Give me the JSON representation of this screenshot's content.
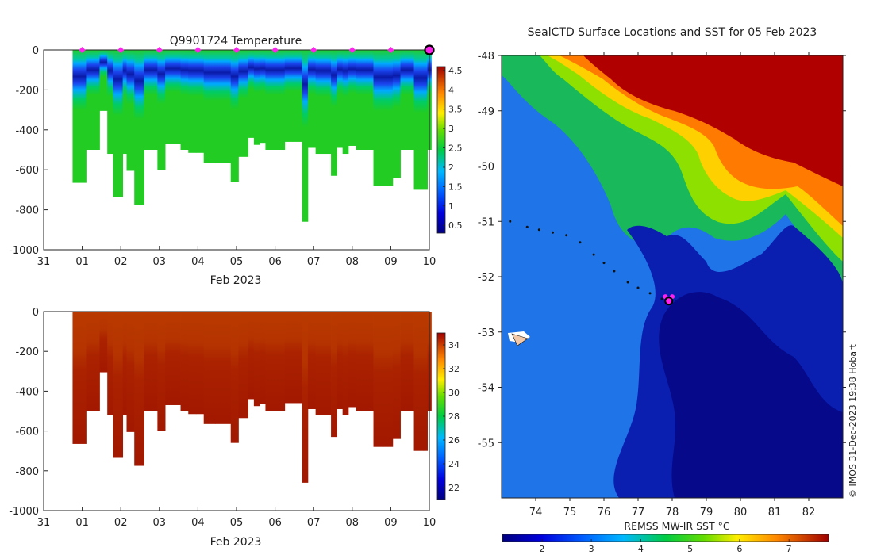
{
  "colors": {
    "axis": "#222222",
    "marker": "#ff22ee",
    "track": "#111111",
    "last_outline": "#000000",
    "sal_dark": "#a81e00",
    "sal_mid": "#b93a00"
  },
  "chart_data": [
    {
      "id": "temperature_section",
      "type": "heatmap",
      "title": "Q9901724  Temperature",
      "xlabel": "Feb 2023",
      "ylabel": "",
      "xticks": [
        "31",
        "01",
        "02",
        "03",
        "04",
        "05",
        "06",
        "07",
        "08",
        "09",
        "10"
      ],
      "xlim": [
        0,
        10
      ],
      "ylim": [
        -1000,
        0
      ],
      "yticks": [
        0,
        -200,
        -400,
        -600,
        -800,
        -1000
      ],
      "colorbar": {
        "min": 0.3,
        "max": 4.6,
        "ticks": [
          4.5,
          4,
          3.5,
          3,
          2.5,
          2,
          1.5,
          1,
          0.5
        ]
      },
      "surface_markers_day": [
        1,
        2,
        3,
        4,
        5,
        6,
        7,
        8,
        9
      ],
      "last_position_day": 10,
      "profiles": [
        {
          "day": 0.75,
          "max_depth": 665
        },
        {
          "day": 0.9,
          "max_depth": 665
        },
        {
          "day": 1.1,
          "max_depth": 500
        },
        {
          "day": 1.3,
          "max_depth": 500
        },
        {
          "day": 1.45,
          "max_depth": 305
        },
        {
          "day": 1.65,
          "max_depth": 520
        },
        {
          "day": 1.8,
          "max_depth": 735
        },
        {
          "day": 2.05,
          "max_depth": 520
        },
        {
          "day": 2.15,
          "max_depth": 605
        },
        {
          "day": 2.35,
          "max_depth": 775
        },
        {
          "day": 2.6,
          "max_depth": 500
        },
        {
          "day": 2.8,
          "max_depth": 500
        },
        {
          "day": 2.95,
          "max_depth": 600
        },
        {
          "day": 3.15,
          "max_depth": 470
        },
        {
          "day": 3.35,
          "max_depth": 470
        },
        {
          "day": 3.55,
          "max_depth": 500
        },
        {
          "day": 3.75,
          "max_depth": 515
        },
        {
          "day": 3.95,
          "max_depth": 515
        },
        {
          "day": 4.15,
          "max_depth": 565
        },
        {
          "day": 4.45,
          "max_depth": 565
        },
        {
          "day": 4.85,
          "max_depth": 660
        },
        {
          "day": 5.05,
          "max_depth": 535
        },
        {
          "day": 5.3,
          "max_depth": 440
        },
        {
          "day": 5.45,
          "max_depth": 475
        },
        {
          "day": 5.6,
          "max_depth": 465
        },
        {
          "day": 5.75,
          "max_depth": 500
        },
        {
          "day": 6.1,
          "max_depth": 500
        },
        {
          "day": 6.25,
          "max_depth": 460
        },
        {
          "day": 6.55,
          "max_depth": 460
        },
        {
          "day": 6.7,
          "max_depth": 860
        },
        {
          "day": 6.85,
          "max_depth": 490
        },
        {
          "day": 7.05,
          "max_depth": 520
        },
        {
          "day": 7.3,
          "max_depth": 520
        },
        {
          "day": 7.45,
          "max_depth": 630
        },
        {
          "day": 7.6,
          "max_depth": 490
        },
        {
          "day": 7.75,
          "max_depth": 520
        },
        {
          "day": 7.9,
          "max_depth": 480
        },
        {
          "day": 8.1,
          "max_depth": 500
        },
        {
          "day": 8.35,
          "max_depth": 500
        },
        {
          "day": 8.55,
          "max_depth": 680
        },
        {
          "day": 8.8,
          "max_depth": 680
        },
        {
          "day": 9.05,
          "max_depth": 640
        },
        {
          "day": 9.25,
          "max_depth": 500
        },
        {
          "day": 9.45,
          "max_depth": 500
        },
        {
          "day": 9.6,
          "max_depth": 700
        },
        {
          "day": 9.85,
          "max_depth": 700
        },
        {
          "day": 9.95,
          "max_depth": 500
        }
      ]
    },
    {
      "id": "salinity_section",
      "type": "heatmap",
      "title": "",
      "xlabel": "Feb 2023",
      "ylabel": "",
      "xticks": [
        "31",
        "01",
        "02",
        "03",
        "04",
        "05",
        "06",
        "07",
        "08",
        "09",
        "10"
      ],
      "xlim": [
        0,
        10
      ],
      "ylim": [
        -1000,
        0
      ],
      "yticks": [
        0,
        -200,
        -400,
        -600,
        -800,
        -1000
      ],
      "colorbar": {
        "min": 21,
        "max": 35,
        "ticks": [
          34,
          32,
          30,
          28,
          26,
          24,
          22
        ]
      }
    },
    {
      "id": "sst_map",
      "type": "heatmap",
      "title": "SealCTD Surface Locations and SST for 05 Feb 2023",
      "xlabel": "",
      "ylabel": "",
      "xlim": [
        73,
        83
      ],
      "ylim": [
        -56,
        -48
      ],
      "xticks": [
        "74",
        "75",
        "76",
        "77",
        "78",
        "79",
        "80",
        "81",
        "82"
      ],
      "yticks": [
        "-48",
        "-49",
        "-50",
        "-51",
        "-52",
        "-53",
        "-54",
        "-55"
      ],
      "colorbar": {
        "label": "REMSS MW-IR SST °C",
        "min": 1.2,
        "max": 7.8,
        "ticks": [
          "2",
          "3",
          "4",
          "5",
          "6",
          "7"
        ]
      },
      "track": [
        {
          "lon": 73.25,
          "lat": -51.0
        },
        {
          "lon": 73.75,
          "lat": -51.1
        },
        {
          "lon": 74.1,
          "lat": -51.15
        },
        {
          "lon": 74.5,
          "lat": -51.2
        },
        {
          "lon": 74.9,
          "lat": -51.25
        },
        {
          "lon": 75.3,
          "lat": -51.38
        },
        {
          "lon": 75.7,
          "lat": -51.6
        },
        {
          "lon": 76.0,
          "lat": -51.75
        },
        {
          "lon": 76.3,
          "lat": -51.9
        },
        {
          "lon": 76.7,
          "lat": -52.1
        },
        {
          "lon": 77.0,
          "lat": -52.2
        },
        {
          "lon": 77.35,
          "lat": -52.3
        },
        {
          "lon": 77.7,
          "lat": -52.4
        }
      ],
      "surface_locations": [
        {
          "lon": 77.8,
          "lat": -52.36
        },
        {
          "lon": 78.0,
          "lat": -52.36
        }
      ],
      "last_location": {
        "lon": 77.9,
        "lat": -52.44
      },
      "credit": "© IMOS 31-Dec-2023 19:38 Hobart"
    }
  ]
}
